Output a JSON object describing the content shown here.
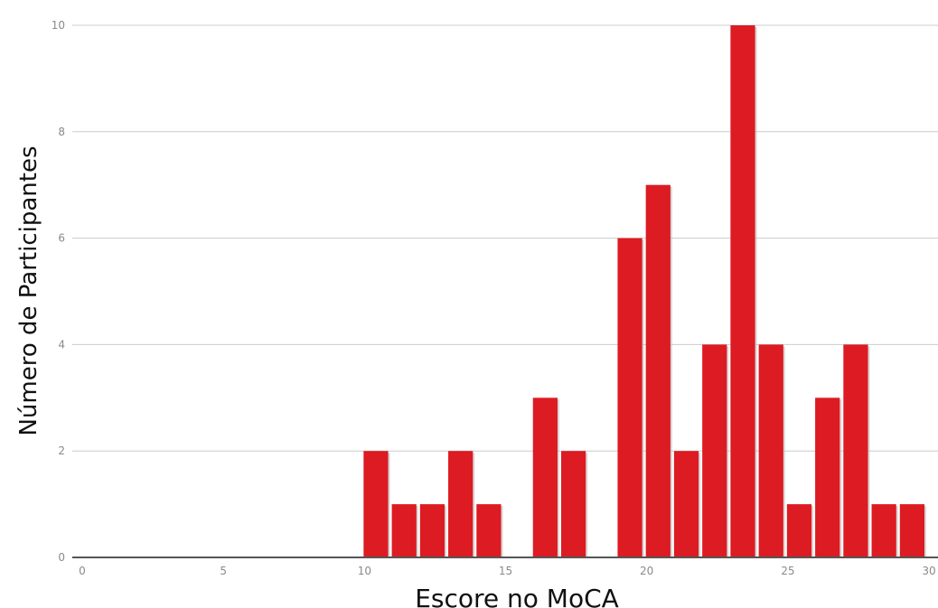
{
  "chart_data": {
    "type": "bar",
    "xlabel": "Escore no MoCA",
    "ylabel": "Número de Participantes",
    "xlim": [
      0,
      30
    ],
    "ylim": [
      0,
      10
    ],
    "x_ticks": [
      0,
      5,
      10,
      15,
      20,
      25,
      30
    ],
    "y_ticks": [
      0,
      2,
      4,
      6,
      8,
      10
    ],
    "x_tick_labels": [
      "0",
      "5",
      "10",
      "15",
      "20",
      "25",
      "30"
    ],
    "y_tick_labels": [
      "0",
      "2",
      "4",
      "6",
      "8",
      "10"
    ],
    "grid": "horizontal",
    "legend": "none",
    "bar_color": "#dd1b22",
    "bars": [
      {
        "x": 11,
        "value": 2
      },
      {
        "x": 12,
        "value": 1
      },
      {
        "x": 13,
        "value": 1
      },
      {
        "x": 14,
        "value": 2
      },
      {
        "x": 15,
        "value": 1
      },
      {
        "x": 17,
        "value": 3
      },
      {
        "x": 18,
        "value": 2
      },
      {
        "x": 20,
        "value": 6
      },
      {
        "x": 21,
        "value": 7
      },
      {
        "x": 22,
        "value": 2
      },
      {
        "x": 23,
        "value": 4
      },
      {
        "x": 24,
        "value": 10
      },
      {
        "x": 25,
        "value": 4
      },
      {
        "x": 26,
        "value": 1
      },
      {
        "x": 27,
        "value": 3
      },
      {
        "x": 28,
        "value": 4
      },
      {
        "x": 29,
        "value": 1
      },
      {
        "x": 30,
        "value": 1
      }
    ]
  }
}
